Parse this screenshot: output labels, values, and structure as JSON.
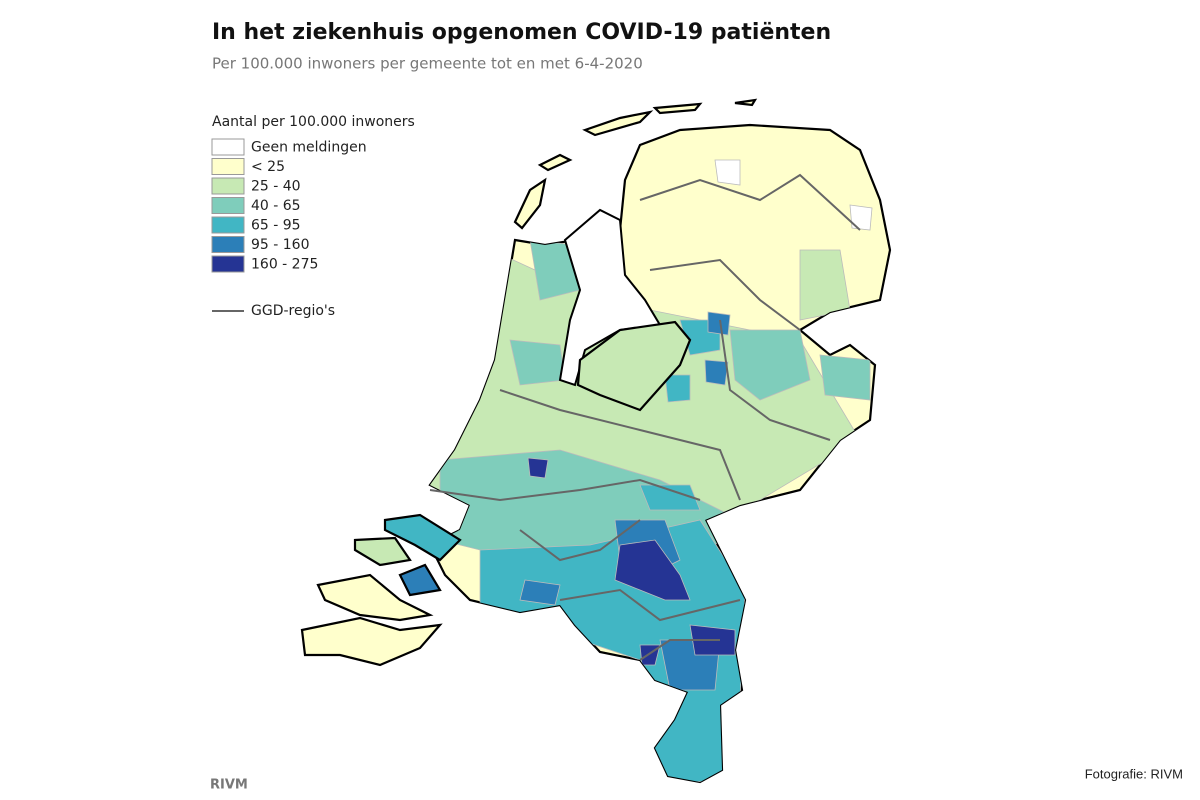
{
  "header": {
    "title": "In het ziekenhuis opgenomen COVID-19 patiënten",
    "subtitle": "Per 100.000 inwoners per gemeente tot en met 6-4-2020"
  },
  "legend": {
    "title": "Aantal per 100.000 inwoners",
    "items": [
      {
        "label": "Geen meldingen",
        "color": "#ffffff"
      },
      {
        "label": "< 25",
        "color": "#ffffcc"
      },
      {
        "label": "25 - 40",
        "color": "#c7e9b4"
      },
      {
        "label": "40 - 65",
        "color": "#7fcdbb"
      },
      {
        "label": "65 - 95",
        "color": "#41b6c4"
      },
      {
        "label": "95 - 160",
        "color": "#2c7fb8"
      },
      {
        "label": "160 - 275",
        "color": "#253494"
      }
    ],
    "line_label": "GGD-regio's"
  },
  "footer": {
    "source": "RIVM",
    "photo_credit": "Fotografie: RIVM"
  }
}
